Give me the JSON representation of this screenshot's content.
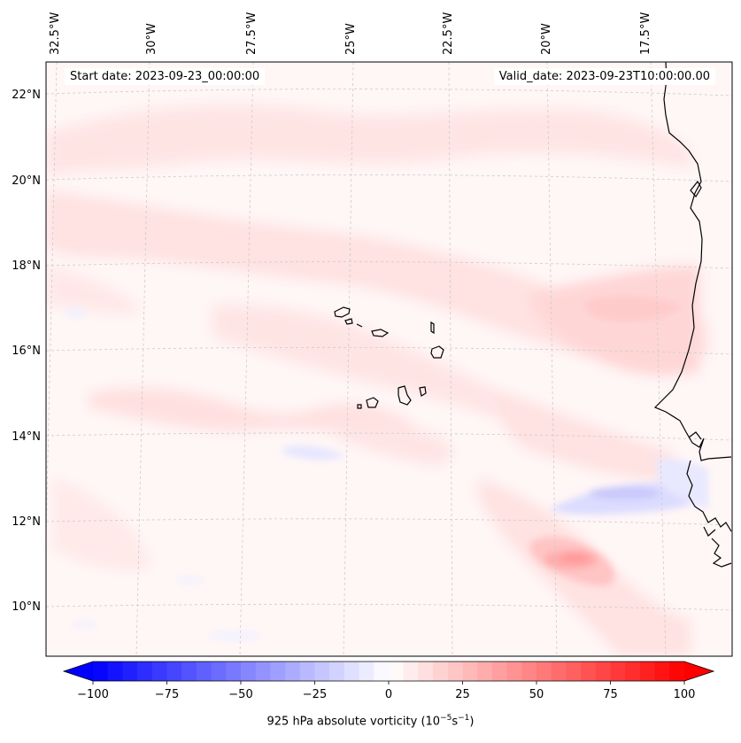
{
  "header": {
    "start_date": "Start date: 2023-09-23_00:00:00",
    "valid_date": "Valid_date: 2023-09-23T10:00:00.00"
  },
  "map": {
    "lon_labels": [
      "32.5°W",
      "30°W",
      "27.5°W",
      "25°W",
      "22.5°W",
      "20°W",
      "17.5°W"
    ],
    "lat_labels": [
      "22°N",
      "20°N",
      "18°N",
      "16°N",
      "14°N",
      "12°N",
      "10°N"
    ],
    "gridlines": "on",
    "field": "925 hPa absolute vorticity"
  },
  "colorbar": {
    "ticks": [
      "−100",
      "−75",
      "−50",
      "−25",
      "0",
      "25",
      "50",
      "75",
      "100"
    ],
    "label_main": "925 hPa absolute vorticity (10",
    "label_sup1": "−5",
    "label_mid": "s",
    "label_sup2": "−1",
    "label_end": ")",
    "min": -100,
    "max": 100,
    "step": 5,
    "low_color": "#0000ff",
    "mid_color": "#ffffff",
    "high_color": "#ff0000"
  }
}
